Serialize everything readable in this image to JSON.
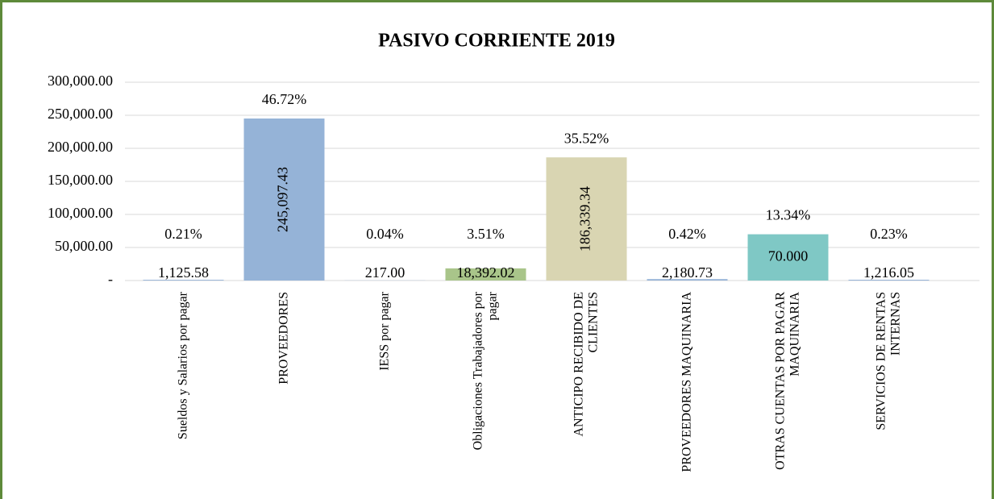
{
  "chart_data": {
    "type": "bar",
    "title": "PASIVO CORRIENTE 2019",
    "categories": [
      "Sueldos y Salarios por pagar",
      "PROVEEDORES",
      "IESS por pagar",
      "Obligaciones Trabajadores por pagar",
      "ANTICIPO RECIBIDO DE CLIENTES",
      "PROVEEDORES MAQUINARIA",
      "OTRAS CUENTAS POR PAGAR MAQUINARIA",
      "SERVICIOS DE RENTAS INTERNAS"
    ],
    "values": [
      1125.58,
      245097.43,
      217.0,
      18392.02,
      186339.34,
      2180.73,
      70000,
      1216.05
    ],
    "value_labels": [
      "1,125.58",
      "245,097.43",
      "217.00",
      "18,392.02",
      "186,339.34",
      "2,180.73",
      "70.000",
      "1,216.05"
    ],
    "annotations": [
      "0.21%",
      "46.72%",
      "0.04%",
      "3.51%",
      "35.52%",
      "0.42%",
      "13.34%",
      "0.23%"
    ],
    "colors": [
      "#95b3d7",
      "#95b3d7",
      "#95b3d7",
      "#a9c58a",
      "#d9d5b2",
      "#95b3d7",
      "#7fc8c5",
      "#95b3d7"
    ],
    "ylim": [
      0,
      300000
    ],
    "yticks": [
      {
        "value": 0,
        "label": "-"
      },
      {
        "value": 50000,
        "label": "50,000.00"
      },
      {
        "value": 100000,
        "label": "100,000.00"
      },
      {
        "value": 150000,
        "label": "150,000.00"
      },
      {
        "value": 200000,
        "label": "200,000.00"
      },
      {
        "value": 250000,
        "label": "250,000.00"
      },
      {
        "value": 300000,
        "label": "300,000.00"
      }
    ],
    "grid": true
  }
}
